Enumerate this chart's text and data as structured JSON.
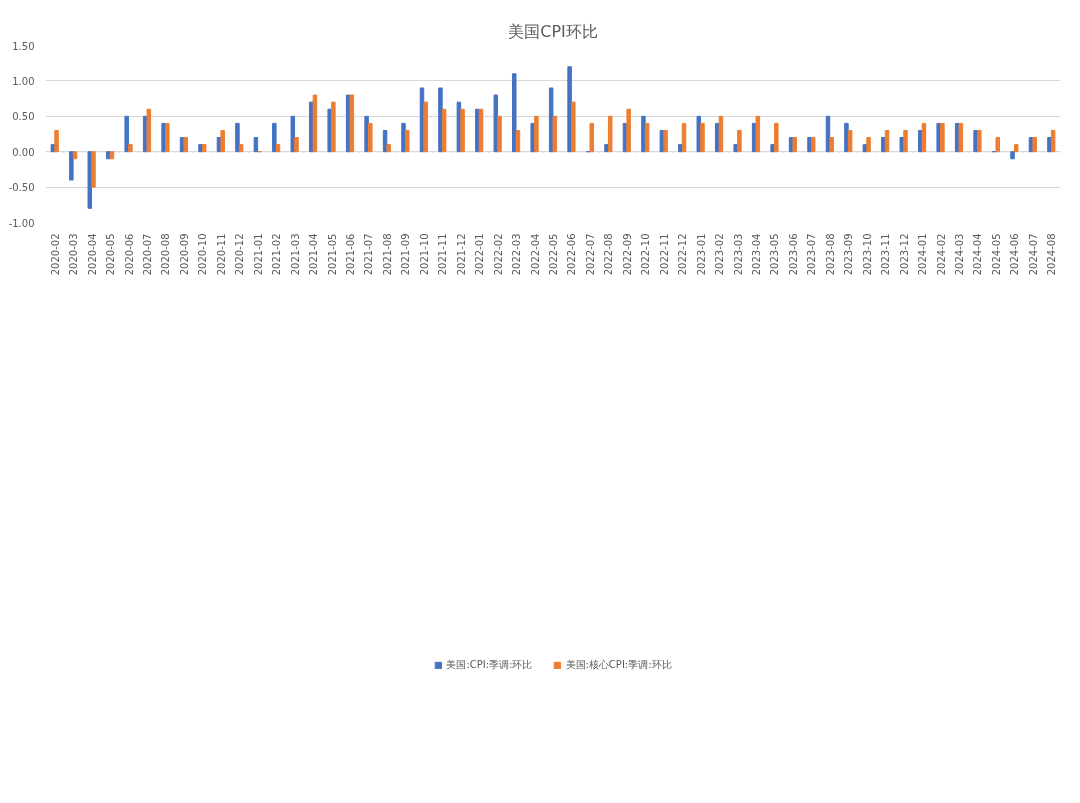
{
  "chart_data": {
    "type": "bar",
    "title": "美国CPI环比",
    "categories": [
      "2020-02",
      "2020-03",
      "2020-04",
      "2020-05",
      "2020-06",
      "2020-07",
      "2020-08",
      "2020-09",
      "2020-10",
      "2020-11",
      "2020-12",
      "2021-01",
      "2021-02",
      "2021-03",
      "2021-04",
      "2021-05",
      "2021-06",
      "2021-07",
      "2021-08",
      "2021-09",
      "2021-10",
      "2021-11",
      "2021-12",
      "2022-01",
      "2022-02",
      "2022-03",
      "2022-04",
      "2022-05",
      "2022-06",
      "2022-07",
      "2022-08",
      "2022-09",
      "2022-10",
      "2022-11",
      "2022-12",
      "2023-01",
      "2023-02",
      "2023-03",
      "2023-04",
      "2023-05",
      "2023-06",
      "2023-07",
      "2023-08",
      "2023-09",
      "2023-10",
      "2023-11",
      "2023-12",
      "2024-01",
      "2024-02",
      "2024-03",
      "2024-04",
      "2024-05",
      "2024-06",
      "2024-07",
      "2024-08"
    ],
    "series": [
      {
        "name": "美国:CPI:季调:环比",
        "color": "#4472c4",
        "values": [
          0.1,
          -0.4,
          -0.8,
          -0.1,
          0.5,
          0.5,
          0.4,
          0.2,
          0.1,
          0.2,
          0.4,
          0.2,
          0.4,
          0.5,
          0.7,
          0.6,
          0.8,
          0.5,
          0.3,
          0.4,
          0.9,
          0.9,
          0.7,
          0.6,
          0.8,
          1.1,
          0.4,
          0.9,
          1.2,
          0.0,
          0.1,
          0.4,
          0.5,
          0.3,
          0.1,
          0.5,
          0.4,
          0.1,
          0.4,
          0.1,
          0.2,
          0.2,
          0.5,
          0.4,
          0.1,
          0.2,
          0.2,
          0.3,
          0.4,
          0.4,
          0.3,
          0.0,
          -0.1,
          0.2,
          0.2
        ]
      },
      {
        "name": "美国:核心CPI:季调:环比",
        "color": "#ed7d31",
        "values": [
          0.3,
          -0.1,
          -0.5,
          -0.1,
          0.1,
          0.6,
          0.4,
          0.2,
          0.1,
          0.3,
          0.1,
          0.0,
          0.1,
          0.2,
          0.8,
          0.7,
          0.8,
          0.4,
          0.1,
          0.3,
          0.7,
          0.6,
          0.6,
          0.6,
          0.5,
          0.3,
          0.5,
          0.5,
          0.7,
          0.4,
          0.5,
          0.6,
          0.4,
          0.3,
          0.4,
          0.4,
          0.5,
          0.3,
          0.5,
          0.4,
          0.2,
          0.2,
          0.2,
          0.3,
          0.2,
          0.3,
          0.3,
          0.4,
          0.4,
          0.4,
          0.3,
          0.2,
          0.1,
          0.2,
          0.3
        ]
      }
    ],
    "ylim": [
      -1.0,
      1.5
    ],
    "yticks": [
      {
        "value": -1.0,
        "label": "-1.00"
      },
      {
        "value": -0.5,
        "label": "-0.50"
      },
      {
        "value": 0,
        "label": "0.00"
      },
      {
        "value": 0.5,
        "label": "0.50"
      },
      {
        "value": 1.0,
        "label": "1.00"
      },
      {
        "value": 1.5,
        "label": "1.50"
      }
    ],
    "grid": "y",
    "legend": "bottom"
  }
}
